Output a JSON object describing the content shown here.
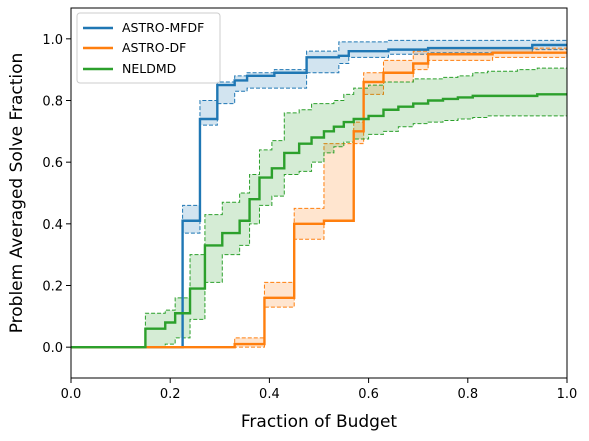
{
  "chart_data": {
    "type": "line",
    "step": true,
    "title": "",
    "xlabel": "Fraction of Budget",
    "ylabel": "Problem Averaged Solve Fraction",
    "xlim": [
      0.0,
      1.0
    ],
    "ylim": [
      -0.1,
      1.1
    ],
    "xticks": [
      "0.0",
      "0.2",
      "0.4",
      "0.6",
      "0.8",
      "1.0"
    ],
    "yticks": [
      "0.0",
      "0.2",
      "0.4",
      "0.6",
      "0.8",
      "1.0"
    ],
    "grid": false,
    "legend": "top-left",
    "series": [
      {
        "name": "ASTRO-MFDF",
        "color": "#1f77b4",
        "x": [
          0.0,
          0.195,
          0.225,
          0.26,
          0.295,
          0.33,
          0.355,
          0.41,
          0.475,
          0.54,
          0.56,
          0.64,
          0.72,
          0.82,
          0.93,
          1.0
        ],
        "y": [
          0.0,
          0.0,
          0.41,
          0.74,
          0.85,
          0.865,
          0.88,
          0.89,
          0.94,
          0.945,
          0.96,
          0.965,
          0.97,
          0.97,
          0.98,
          0.98
        ],
        "lower": [
          0.0,
          0.0,
          0.37,
          0.72,
          0.79,
          0.83,
          0.84,
          0.84,
          0.89,
          0.92,
          0.94,
          0.95,
          0.955,
          0.955,
          0.965,
          0.965
        ],
        "upper": [
          0.0,
          0.0,
          0.46,
          0.8,
          0.86,
          0.88,
          0.89,
          0.9,
          0.96,
          0.99,
          0.99,
          0.995,
          0.995,
          0.995,
          0.995,
          0.995
        ]
      },
      {
        "name": "ASTRO-DF",
        "color": "#ff7f0e",
        "x": [
          0.0,
          0.33,
          0.39,
          0.45,
          0.51,
          0.57,
          0.59,
          0.63,
          0.69,
          0.72,
          0.85,
          1.0
        ],
        "y": [
          0.0,
          0.01,
          0.16,
          0.4,
          0.41,
          0.7,
          0.86,
          0.89,
          0.92,
          0.95,
          0.955,
          0.955
        ],
        "lower": [
          0.0,
          0.0,
          0.13,
          0.35,
          0.41,
          0.66,
          0.82,
          0.86,
          0.9,
          0.93,
          0.94,
          0.94
        ],
        "upper": [
          0.0,
          0.03,
          0.21,
          0.45,
          0.66,
          0.73,
          0.89,
          0.93,
          0.96,
          0.97,
          0.97,
          0.97
        ]
      },
      {
        "name": "NELDMD",
        "color": "#2ca02c",
        "x": [
          0.0,
          0.15,
          0.19,
          0.21,
          0.24,
          0.27,
          0.305,
          0.34,
          0.36,
          0.38,
          0.405,
          0.43,
          0.46,
          0.485,
          0.51,
          0.53,
          0.55,
          0.57,
          0.6,
          0.63,
          0.66,
          0.69,
          0.72,
          0.75,
          0.78,
          0.81,
          0.84,
          0.9,
          0.94,
          1.0
        ],
        "y": [
          0.0,
          0.06,
          0.08,
          0.11,
          0.19,
          0.33,
          0.37,
          0.41,
          0.48,
          0.55,
          0.58,
          0.63,
          0.66,
          0.68,
          0.7,
          0.715,
          0.73,
          0.74,
          0.75,
          0.77,
          0.78,
          0.79,
          0.8,
          0.805,
          0.81,
          0.815,
          0.815,
          0.815,
          0.82,
          0.82
        ],
        "lower": [
          0.0,
          0.0,
          0.01,
          0.03,
          0.09,
          0.21,
          0.3,
          0.33,
          0.4,
          0.46,
          0.49,
          0.56,
          0.57,
          0.6,
          0.63,
          0.65,
          0.665,
          0.675,
          0.69,
          0.7,
          0.715,
          0.725,
          0.73,
          0.735,
          0.74,
          0.745,
          0.75,
          0.75,
          0.75,
          0.75
        ],
        "upper": [
          0.0,
          0.11,
          0.12,
          0.16,
          0.3,
          0.43,
          0.47,
          0.5,
          0.56,
          0.64,
          0.67,
          0.76,
          0.77,
          0.79,
          0.79,
          0.8,
          0.82,
          0.84,
          0.85,
          0.86,
          0.86,
          0.87,
          0.87,
          0.875,
          0.88,
          0.89,
          0.895,
          0.9,
          0.905,
          0.905
        ]
      }
    ]
  }
}
